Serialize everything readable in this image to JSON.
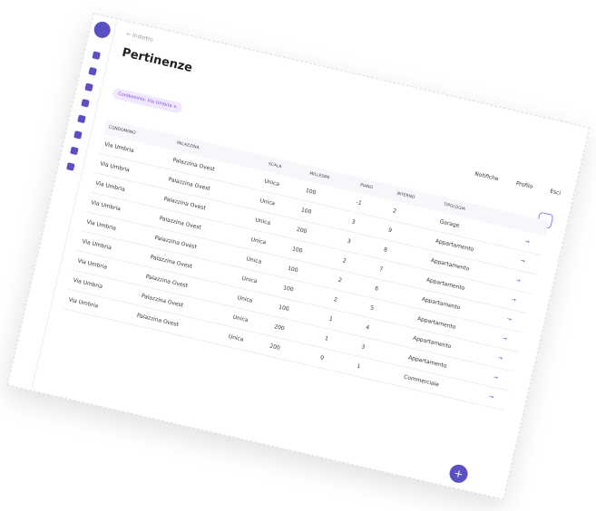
{
  "header": {
    "back": "Indietro",
    "title": "Pertinenze",
    "filter_chip": "Condominio: Via Umbria",
    "nav": [
      "Notifiche",
      "Profilo",
      "Esci"
    ]
  },
  "table": {
    "columns": [
      "CONDOMINIO",
      "PALAZZINA",
      "SCALA",
      "MILLESIMI",
      "PIANO",
      "INTERNO",
      "TIPOLOGIA"
    ],
    "rows": [
      [
        "Via Umbria",
        "Palazzina Ovest",
        "Unica",
        "100",
        "-1",
        "2",
        "Garage"
      ],
      [
        "Via Umbria",
        "Palazzina Ovest",
        "Unica",
        "100",
        "3",
        "9",
        "Appartamento"
      ],
      [
        "Via Umbria",
        "Palazzina Ovest",
        "Unica",
        "200",
        "3",
        "8",
        "Appartamento"
      ],
      [
        "Via Umbria",
        "Palazzina Ovest",
        "Unica",
        "100",
        "2",
        "7",
        "Appartamento"
      ],
      [
        "Via Umbria",
        "Palazzina Ovest",
        "Unica",
        "100",
        "2",
        "6",
        "Appartamento"
      ],
      [
        "Via Umbria",
        "Palazzina Ovest",
        "Unica",
        "100",
        "2",
        "5",
        "Appartamento"
      ],
      [
        "Via Umbria",
        "Palazzina Ovest",
        "Unica",
        "100",
        "1",
        "4",
        "Appartamento"
      ],
      [
        "Via Umbria",
        "Palazzina Ovest",
        "Unica",
        "200",
        "1",
        "3",
        "Appartamento"
      ],
      [
        "Via Umbria",
        "Palazzina Ovest",
        "Unica",
        "200",
        "0",
        "1",
        "Commerciale"
      ]
    ]
  }
}
